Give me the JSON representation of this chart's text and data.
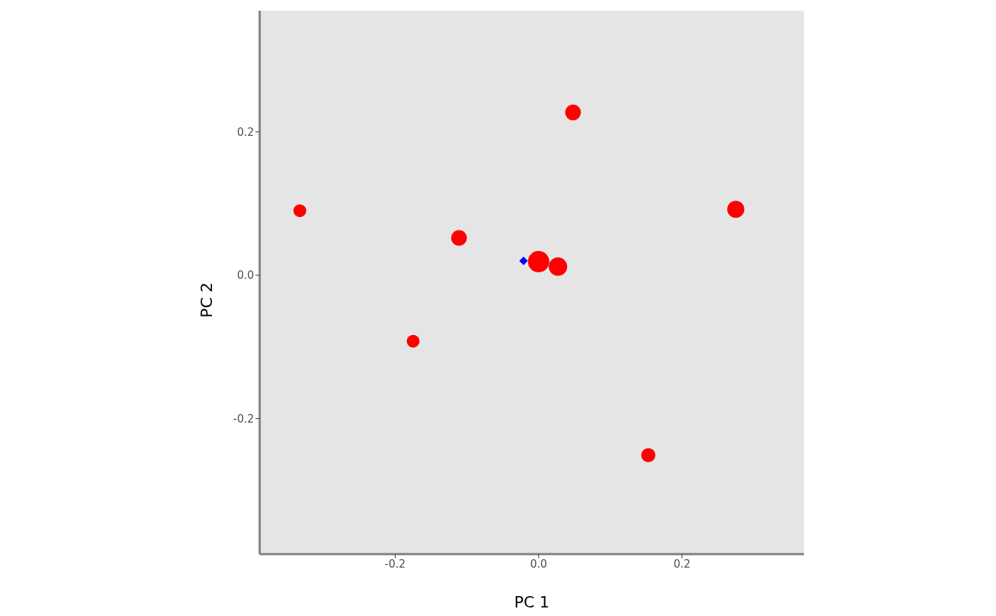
{
  "chart_data": {
    "type": "bubble",
    "xlabel": "PC 1",
    "ylabel": "PC 2",
    "xlim": [
      -0.389,
      0.37
    ],
    "ylim": [
      -0.389,
      0.369
    ],
    "xticks": [
      -0.2,
      {
        "value": 0,
        "label": "0.0"
      },
      0.2
    ],
    "yticks": [
      -0.2,
      {
        "value": 0,
        "label": "0.0"
      },
      0.2
    ],
    "grid": false,
    "marker": "circle",
    "series": [
      {
        "color": "#ff0000",
        "x": [
          -0.333,
          -0.111,
          -0.175,
          0.0,
          0.027,
          0.048,
          0.275,
          0.153
        ],
        "values": [
          0.09,
          0.052,
          -0.092,
          0.019,
          0.012,
          0.227,
          0.092,
          -0.251
        ],
        "sizes": [
          0.36,
          0.54,
          0.36,
          1,
          0.75,
          0.54,
          0.64,
          0.44
        ]
      },
      {
        "type": "scatter",
        "marker": "diamond",
        "color": "#0000ff",
        "x": [
          -0.021
        ],
        "values": [
          0.02
        ]
      }
    ]
  }
}
